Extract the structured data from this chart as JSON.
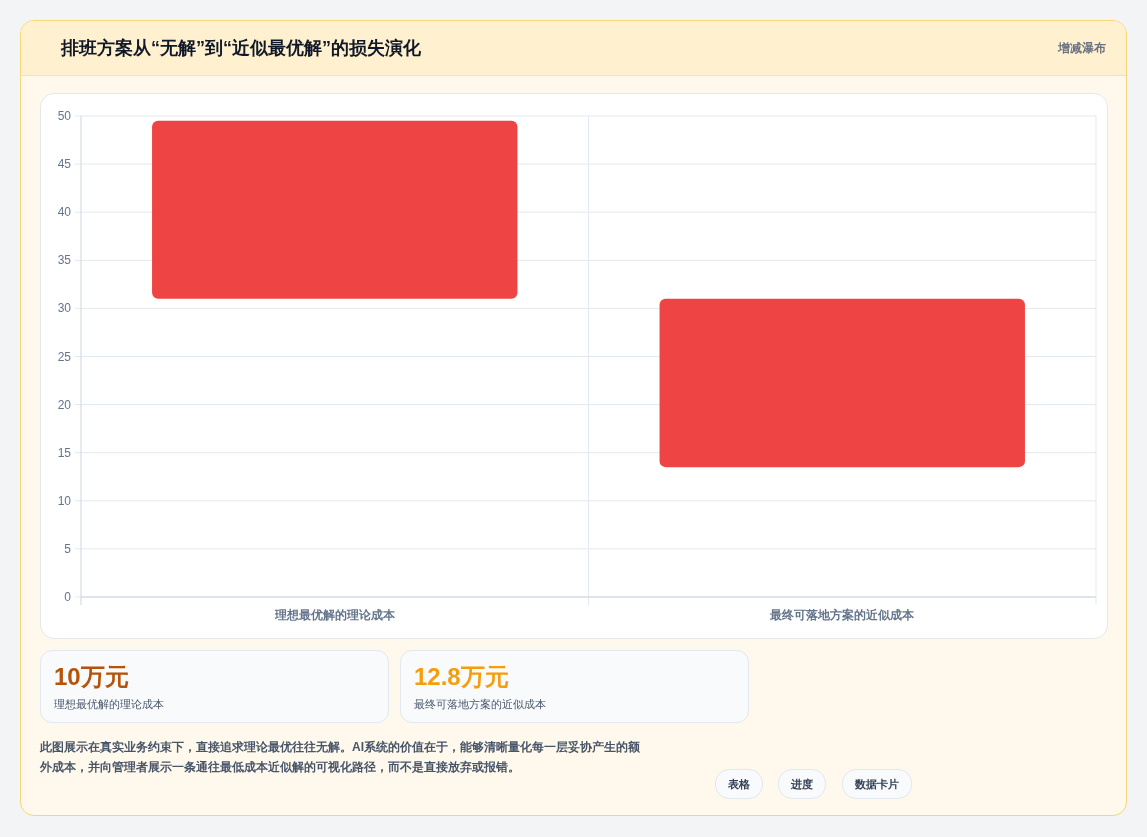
{
  "chart_data": {
    "type": "bar",
    "title": "排班方案从“无解”到“近似最优解”的损失演化",
    "categories": [
      "理想最优解的理论成本",
      "最终可落地方案的近似成本"
    ],
    "values": [
      18.5,
      17.5
    ],
    "base": [
      31,
      13.5
    ],
    "color": "#ef4444",
    "ylim": [
      0,
      50
    ],
    "yticks": [
      0,
      5,
      10,
      15,
      20,
      25,
      30,
      35,
      40,
      45,
      50
    ],
    "grid": true,
    "annotations": [
      "增减瀑布",
      "10万元",
      "理想最优解的理论成本",
      "12.8万元",
      "最终可落地方案的近似成本",
      "此图展示在真实业务约束下，直接追求理论最优往往无解。AI系统的价值在于，能够清晰量化每一层妥协产生的额外成本，并向管理者展示一条通往最低成本近似解的可视化路径，而不是直接放弃或报错。",
      "表格",
      "进度",
      "数据卡片"
    ]
  }
}
